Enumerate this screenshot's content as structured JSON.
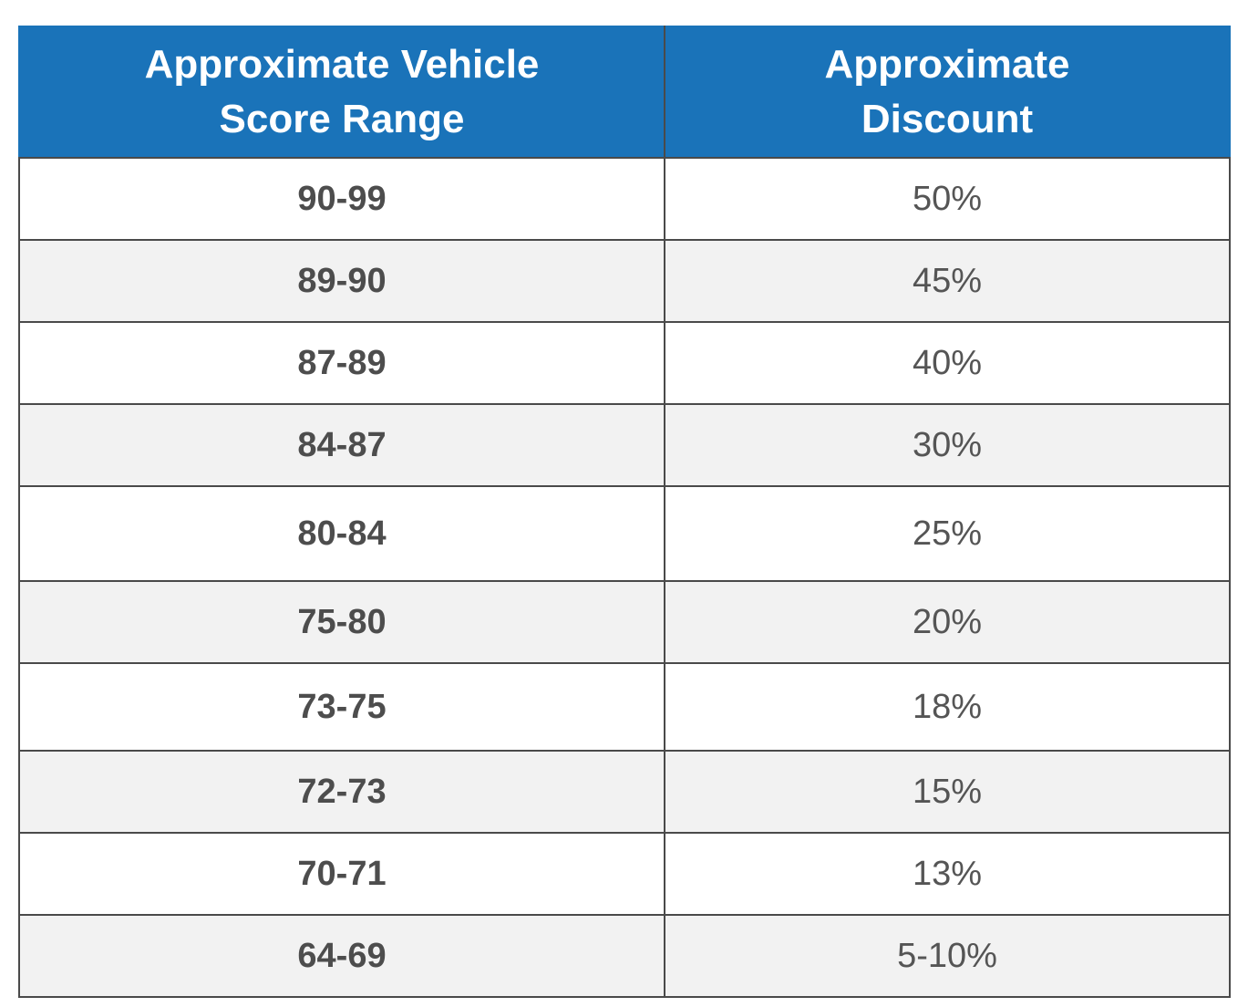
{
  "table": {
    "headers": [
      {
        "line1": "Approximate Vehicle",
        "line2": "Score Range"
      },
      {
        "line1": "Approximate",
        "line2": "Discount"
      }
    ],
    "rows": [
      {
        "range": "90-99",
        "discount": "50%"
      },
      {
        "range": "89-90",
        "discount": "45%"
      },
      {
        "range": "87-89",
        "discount": "40%"
      },
      {
        "range": "84-87",
        "discount": "30%"
      },
      {
        "range": "80-84",
        "discount": "25%"
      },
      {
        "range": "75-80",
        "discount": "20%"
      },
      {
        "range": "73-75",
        "discount": "18%"
      },
      {
        "range": "72-73",
        "discount": "15%"
      },
      {
        "range": "70-71",
        "discount": "13%"
      },
      {
        "range": "64-69",
        "discount": "5-10%"
      }
    ],
    "colors": {
      "header_bg": "#1a73b9",
      "header_text": "#ffffff",
      "stripe_bg": "#f2f2f2",
      "body_text": "#4d4d4d",
      "border": "#4a4a4a"
    }
  }
}
